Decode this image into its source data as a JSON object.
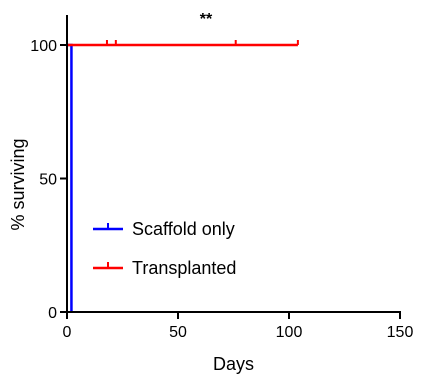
{
  "chart_data": {
    "type": "line",
    "subtype": "kaplan-meier survival curve",
    "title": "",
    "xlabel": "Days",
    "ylabel": "% surviving",
    "xlim": [
      0,
      150
    ],
    "ylim": [
      0,
      100
    ],
    "xticks": [
      0,
      50,
      100,
      150
    ],
    "yticks": [
      0,
      50,
      100
    ],
    "grid": false,
    "legend_position": "bottom-left",
    "annotation": "**",
    "series": [
      {
        "name": "Scaffold only",
        "color": "#0000ff",
        "steps": [
          [
            0,
            100
          ],
          [
            2,
            100
          ],
          [
            2,
            0
          ]
        ],
        "censored": []
      },
      {
        "name": "Transplanted",
        "color": "#ff0000",
        "steps": [
          [
            0,
            100
          ],
          [
            104,
            100
          ]
        ],
        "censored": [
          18,
          22,
          76,
          104
        ]
      }
    ]
  }
}
